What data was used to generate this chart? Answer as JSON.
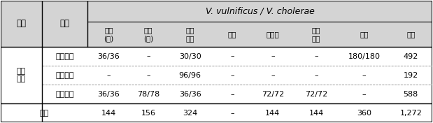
{
  "title_text": "V. vulnificus / V. cholerae",
  "col0_header": "권역",
  "col1_header": "시료",
  "sub_headers": [
    "낙치\n(회)",
    "전어\n(회)",
    "우령\n앵이",
    "생굴",
    "산낙지",
    "간장\n게장",
    "해수",
    "총계"
  ],
  "region_label": "동해\n권역",
  "sub_rows": [
    [
      "생산단계",
      "36/36",
      "–",
      "30/30",
      "–",
      "–",
      "–",
      "180/180",
      "492"
    ],
    [
      "가공단계",
      "–",
      "–",
      "96/96",
      "–",
      "–",
      "–",
      "–",
      "192"
    ],
    [
      "유통단계",
      "36/36",
      "78/78",
      "36/36",
      "–",
      "72/72",
      "72/72",
      "–",
      "588"
    ]
  ],
  "total_row": [
    "총계",
    "144",
    "156",
    "324",
    "–",
    "144",
    "144",
    "360",
    "1,272"
  ],
  "header_bg": "#d4d4d4",
  "fig_bg": "#ffffff",
  "font_size": 8.0,
  "title_font_size": 9.0
}
